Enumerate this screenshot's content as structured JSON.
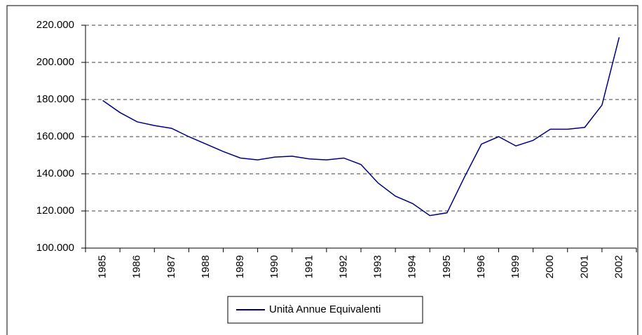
{
  "chart_data": {
    "type": "line",
    "categories": [
      "1985",
      null,
      "1986",
      null,
      "1987",
      null,
      "1988",
      null,
      "1989",
      null,
      "1990",
      null,
      "1991",
      null,
      "1992",
      null,
      "1993",
      null,
      "1994",
      null,
      "1995",
      null,
      "1996",
      null,
      "1999",
      null,
      "2000",
      null,
      "2001",
      null,
      "2002"
    ],
    "series": [
      {
        "name": "Unità Annue Equivalenti",
        "color": "#000080",
        "values": [
          179500,
          173000,
          168000,
          166000,
          164500,
          160000,
          156000,
          152000,
          148500,
          147500,
          149000,
          149500,
          148000,
          147500,
          148500,
          145000,
          135000,
          128000,
          124000,
          117500,
          119000,
          138000,
          156000,
          160000,
          155000,
          158000,
          164000,
          164000,
          165000,
          177000,
          213500
        ]
      }
    ],
    "ylim": [
      100000,
      220000
    ],
    "yticks": [
      {
        "value": 100000,
        "label": "100.000"
      },
      {
        "value": 120000,
        "label": "120.000"
      },
      {
        "value": 140000,
        "label": "140.000"
      },
      {
        "value": 160000,
        "label": "160.000"
      },
      {
        "value": 180000,
        "label": "180.000"
      },
      {
        "value": 200000,
        "label": "200.000"
      },
      {
        "value": 220000,
        "label": "220.000"
      }
    ],
    "grid": true
  }
}
